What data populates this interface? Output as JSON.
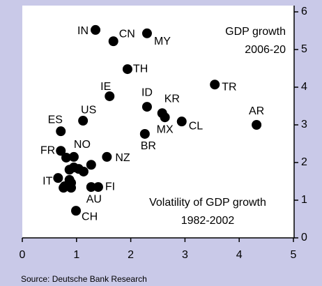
{
  "chart_data": {
    "type": "scatter",
    "annotations": [
      "GDP growth",
      "2006-20",
      "Volatility of GDP growth",
      "1982-2002"
    ],
    "source": "Source: Deutsche Bank Research",
    "labels": [
      "IN",
      "CN",
      "MY",
      "TH",
      "IE",
      "ID",
      "KR",
      "MX",
      "CL",
      "TR",
      "AR",
      "BR",
      "US",
      "ES",
      "FR",
      "NO",
      "NZ",
      "IT",
      "FI",
      "AU",
      "CH",
      null,
      null,
      null,
      null,
      null,
      null,
      null,
      null,
      null,
      null,
      null
    ],
    "x": [
      1.35,
      1.68,
      2.3,
      1.94,
      1.61,
      2.3,
      2.58,
      2.63,
      2.94,
      3.55,
      4.32,
      2.26,
      1.12,
      0.71,
      0.71,
      0.95,
      1.56,
      0.66,
      1.4,
      1.27,
      0.99,
      0.81,
      0.87,
      0.95,
      1.04,
      1.13,
      1.27,
      0.87,
      0.78,
      0.9,
      0.76,
      0.9
    ],
    "values": [
      5.52,
      5.22,
      5.43,
      4.48,
      3.76,
      3.48,
      3.31,
      3.2,
      3.09,
      4.07,
      3.0,
      2.76,
      3.11,
      2.83,
      2.31,
      2.15,
      2.15,
      1.59,
      1.35,
      1.35,
      0.72,
      2.13,
      1.81,
      1.87,
      1.83,
      1.76,
      1.94,
      1.54,
      1.37,
      1.46,
      1.33,
      1.33
    ],
    "color": "#000000",
    "xlim": [
      0,
      5
    ],
    "xticks": [
      0,
      1,
      2,
      3,
      4,
      5
    ],
    "ylim": [
      0,
      6
    ],
    "yticks": [
      0,
      1,
      2,
      3,
      4,
      5,
      6
    ]
  }
}
